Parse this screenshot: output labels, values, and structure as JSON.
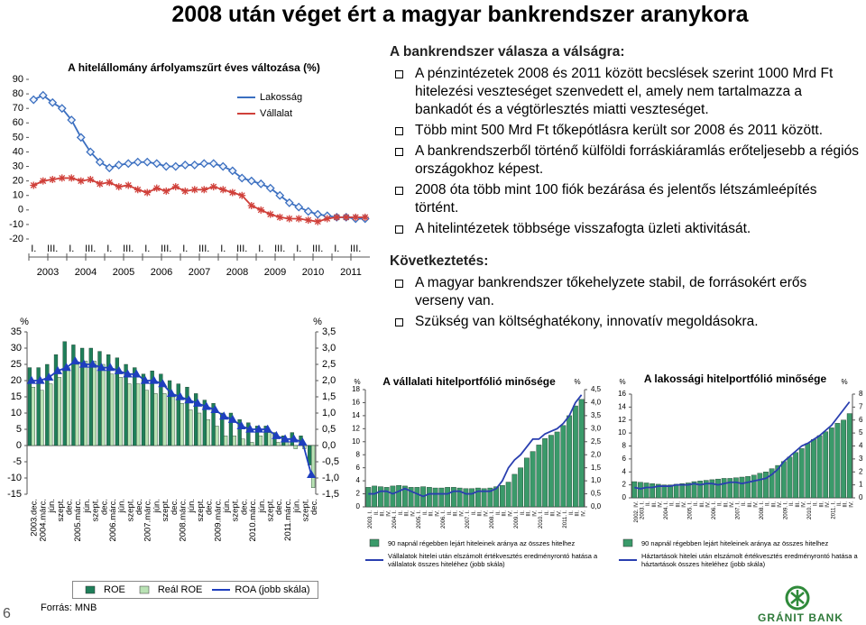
{
  "title": "2008 után véget ért a magyar bankrendszer aranykora",
  "chart_data": [
    {
      "type": "line",
      "title": "A hitelállomány árfolyamszűrt éves változása (%)",
      "categories": [
        "I.",
        null,
        "III.",
        null,
        "I.",
        null,
        "III.",
        null,
        "I.",
        null,
        "III.",
        null,
        "I.",
        null,
        "III.",
        null,
        "I.",
        null,
        "III.",
        null,
        "I.",
        null,
        "III.",
        null,
        "I.",
        null,
        "III.",
        null,
        "I.",
        null,
        "III.",
        null,
        "I.",
        null,
        "III.",
        null
      ],
      "year_labels": [
        "2003",
        "2004",
        "2005",
        "2006",
        "2007",
        "2008",
        "2009",
        "2010",
        "2011"
      ],
      "series": [
        {
          "name": "Lakosság",
          "color": "#3b6fc0",
          "marker": "diamond",
          "values": [
            76,
            79,
            74,
            70,
            62,
            50,
            40,
            33,
            29,
            31,
            32,
            33,
            33,
            32,
            30,
            30,
            31,
            31,
            32,
            32,
            30,
            27,
            22,
            20,
            18,
            15,
            10,
            5,
            2,
            -1,
            -3,
            -4,
            -5,
            -5,
            -6,
            -6
          ]
        },
        {
          "name": "Vállalat",
          "color": "#d0403a",
          "marker": "cross",
          "values": [
            17,
            20,
            21,
            22,
            22,
            20,
            21,
            18,
            19,
            16,
            17,
            14,
            12,
            15,
            13,
            16,
            13,
            14,
            14,
            16,
            14,
            12,
            10,
            3,
            0,
            -3,
            -5,
            -6,
            -6,
            -7,
            -8,
            -6,
            -5,
            -5,
            -5,
            -5
          ]
        }
      ],
      "ylim": [
        -20,
        90
      ],
      "yticks": [
        90,
        80,
        70,
        60,
        50,
        40,
        30,
        20,
        10,
        0,
        -10,
        -20
      ],
      "grid": false
    },
    {
      "type": "bar",
      "categories": [
        "2003.dec.",
        "2004.márc.",
        "jún.",
        "szept.",
        "dec.",
        "2005.márc.",
        "jún.",
        "szept.",
        "dec.",
        "2006.márc.",
        "jún.",
        "szept.",
        "dec.",
        "2007.márc.",
        "jún.",
        "szept.",
        "dec.",
        "2008.márc.",
        "jún.",
        "szept.",
        "dec.",
        "2009.márc.",
        "jún.",
        "szept.",
        "dec.",
        "2010.márc.",
        "jún.",
        "szept.",
        "dec.",
        "2011.márc.",
        "jún.",
        "szept.",
        "dec."
      ],
      "series": [
        {
          "name": "ROE",
          "type": "bar",
          "color": "#1f7f5a",
          "values": [
            24,
            24,
            25,
            28,
            32,
            31,
            30,
            30,
            29,
            28,
            27,
            25,
            24,
            22,
            23,
            22,
            20,
            19,
            18,
            16,
            14,
            13,
            10,
            10,
            8,
            7,
            6,
            6,
            4,
            3,
            4,
            3,
            -6
          ]
        },
        {
          "name": "Reál ROE",
          "type": "bar",
          "color": "#b9e2b4",
          "values": [
            18,
            17,
            19,
            21,
            24,
            25,
            26,
            26,
            25,
            22,
            21,
            19,
            19,
            17,
            16,
            16,
            15,
            13,
            11,
            10,
            8,
            6,
            3,
            3,
            2,
            1,
            3,
            4,
            1,
            1,
            -1,
            -1,
            -13
          ]
        },
        {
          "name": "ROA (jobb skála)",
          "type": "line",
          "axis": "y2",
          "color": "#1f3fbf",
          "marker": "triangle",
          "values": [
            2.0,
            2.0,
            2.1,
            2.3,
            2.4,
            2.6,
            2.5,
            2.5,
            2.4,
            2.4,
            2.3,
            2.2,
            2.2,
            2.0,
            2.0,
            1.9,
            1.6,
            1.5,
            1.4,
            1.3,
            1.2,
            1.1,
            0.9,
            0.8,
            0.6,
            0.5,
            0.5,
            0.5,
            0.3,
            0.2,
            0.2,
            0.1,
            -0.9
          ]
        }
      ],
      "y_label": "%",
      "y2_label": "%",
      "ylim": [
        -15,
        35
      ],
      "yticks": [
        35,
        30,
        25,
        20,
        15,
        10,
        5,
        0,
        -5,
        -10,
        -15
      ],
      "y2lim": [
        -1.5,
        3.5
      ],
      "y2ticks": [
        {
          "value": 3.5,
          "label": "3,5"
        },
        {
          "value": 3,
          "label": "3,0"
        },
        {
          "value": 2.5,
          "label": "2,5"
        },
        {
          "value": 2,
          "label": "2,0"
        },
        {
          "value": 1.5,
          "label": "1,5"
        },
        {
          "value": 1,
          "label": "1,0"
        },
        {
          "value": 0.5,
          "label": "0,5"
        },
        {
          "value": 0,
          "label": "0,0"
        },
        {
          "value": -0.5,
          "label": "-0,5"
        },
        {
          "value": -1,
          "label": "-1,0"
        },
        {
          "value": -1.5,
          "label": "-1,5"
        }
      ],
      "grid": false
    },
    {
      "type": "bar",
      "title": "A vállalati hitelportfólió minősége",
      "categories": [
        "2003. I.",
        "II.",
        "III.",
        "IV.",
        "2004. I.",
        "II.",
        "III.",
        "IV.",
        "2005. I.",
        "II.",
        "III.",
        "IV.",
        "2006. I.",
        "II.",
        "III.",
        "IV.",
        "2007. I.",
        "II.",
        "III.",
        "IV.",
        "2008. I.",
        "II.",
        "III.",
        "IV.",
        "2009. I.",
        "II.",
        "III.",
        "IV.",
        "2010. I.",
        "II.",
        "III.",
        "IV.",
        "2011. I.",
        "II.",
        "III.",
        "IV."
      ],
      "series": [
        {
          "name": "90 napnál régebben lejárt hiteleinek aránya az összes hitelhez",
          "type": "bar",
          "color": "#3a9a6a",
          "values": [
            3.0,
            3.2,
            3.1,
            3.0,
            3.2,
            3.3,
            3.2,
            3.0,
            3.0,
            3.1,
            3.0,
            2.9,
            2.9,
            3.0,
            3.0,
            2.9,
            2.8,
            2.8,
            2.9,
            2.8,
            2.9,
            3.1,
            3.3,
            3.8,
            5.0,
            6.0,
            7.5,
            8.5,
            9.5,
            10.5,
            11.0,
            11.5,
            12.5,
            14.0,
            15.5,
            16.5
          ]
        },
        {
          "name": "Vállalatok hitelei után elszámolt értékvesztés eredményrontó hatása a vállalatok összes hiteléhez (jobb skála)",
          "type": "line",
          "axis": "y2",
          "color": "#2a3fb0",
          "values": [
            0.5,
            0.5,
            0.6,
            0.6,
            0.5,
            0.6,
            0.7,
            0.6,
            0.5,
            0.4,
            0.5,
            0.5,
            0.5,
            0.5,
            0.6,
            0.6,
            0.5,
            0.5,
            0.6,
            0.6,
            0.6,
            0.7,
            1.0,
            1.5,
            1.8,
            2.0,
            2.3,
            2.6,
            2.6,
            2.8,
            2.9,
            3.0,
            3.2,
            3.5,
            4.0,
            4.3
          ]
        }
      ],
      "y_label": "%",
      "y2_label": "%",
      "ylim": [
        0,
        18
      ],
      "yticks": [
        18,
        16,
        14,
        12,
        10,
        8,
        6,
        4,
        2,
        0
      ],
      "y2lim": [
        0,
        4.5
      ],
      "y2ticks": [
        {
          "value": 4.5,
          "label": "4,5"
        },
        {
          "value": 4,
          "label": "4,0"
        },
        {
          "value": 3.5,
          "label": "3,5"
        },
        {
          "value": 3,
          "label": "3,0"
        },
        {
          "value": 2.5,
          "label": "2,5"
        },
        {
          "value": 2,
          "label": "2,0"
        },
        {
          "value": 1.5,
          "label": "1,5"
        },
        {
          "value": 1,
          "label": "1,0"
        },
        {
          "value": 0.5,
          "label": "0,5"
        },
        {
          "value": 0,
          "label": "0,0"
        }
      ],
      "grid": false
    },
    {
      "type": "bar",
      "title": "A lakossági hitelportfólió minősége",
      "categories": [
        "2002. IV.",
        "2003. I.",
        "II.",
        "III.",
        "IV.",
        "2004. I.",
        "II.",
        "III.",
        "IV.",
        "2005. I.",
        "II.",
        "III.",
        "IV.",
        "2006. I.",
        "II.",
        "III.",
        "IV.",
        "2007. I.",
        "II.",
        "III.",
        "IV.",
        "2008. I.",
        "II.",
        "III.",
        "IV.",
        "2009. I.",
        "II.",
        "III.",
        "IV.",
        "2010. I.",
        "II.",
        "III.",
        "IV.",
        "2011. I.",
        "II.",
        "III.",
        "IV."
      ],
      "series": [
        {
          "name": "90 napnál régebben lejárt hiteleinek aránya az összes hitelhez",
          "type": "bar",
          "color": "#3a9a6a",
          "values": [
            2.5,
            2.4,
            2.3,
            2.2,
            2.1,
            2.0,
            2.0,
            2.1,
            2.2,
            2.3,
            2.5,
            2.6,
            2.7,
            2.8,
            2.9,
            3.0,
            3.0,
            3.1,
            3.2,
            3.3,
            3.5,
            3.8,
            4.0,
            4.5,
            5.0,
            5.6,
            6.3,
            7.0,
            7.6,
            8.4,
            9.0,
            9.6,
            10.2,
            10.8,
            11.5,
            12.0,
            13.0
          ]
        },
        {
          "name": "Háztartások hitelei után elszámolt értékvesztés eredményrontó hatása a háztartások összes hiteléhez (jobb skála)",
          "type": "line",
          "axis": "y2",
          "color": "#2a3fb0",
          "values": [
            0.8,
            0.7,
            0.8,
            0.8,
            0.9,
            0.9,
            0.9,
            1.0,
            1.0,
            1.0,
            1.1,
            1.0,
            1.1,
            1.1,
            1.0,
            1.1,
            1.2,
            1.2,
            1.1,
            1.2,
            1.3,
            1.4,
            1.5,
            1.8,
            2.2,
            2.8,
            3.2,
            3.6,
            4.0,
            4.2,
            4.5,
            4.8,
            5.2,
            5.6,
            6.2,
            6.8,
            7.4
          ]
        }
      ],
      "y_label": "%",
      "y2_label": "%",
      "ylim": [
        0,
        16
      ],
      "yticks": [
        16,
        14,
        12,
        10,
        8,
        6,
        4,
        2,
        0
      ],
      "y2lim": [
        0,
        8
      ],
      "y2ticks": [
        8,
        7,
        6,
        5,
        4,
        3,
        2,
        1,
        0
      ],
      "grid": false
    }
  ],
  "response": {
    "heading": "A bankrendszer válasza a válságra:",
    "bullets": [
      "A pénzintézetek 2008 és 2011 között becslések szerint 1000 Mrd Ft hitelezési veszteséget szenvedett el, amely nem tartalmazza a bankadót és a végtörlesztés miatti veszteséget.",
      "Több mint 500 Mrd Ft tőkepótlásra került sor 2008 és 2011 között.",
      "A bankrendszerből történő külföldi forráskiáramlás erőteljesebb a régiós országokhoz képest.",
      "2008 óta több mint 100 fiók bezárása és jelentős létszámleépítés történt.",
      "A hitelintézetek többsége visszafogta üzleti aktivitását."
    ]
  },
  "conclusion": {
    "heading": "Következtetés:",
    "bullets": [
      "A magyar bankrendszer tőkehelyzete stabil, de forrásokért erős verseny van.",
      "Szükség van költséghatékony, innovatív megoldásokra."
    ]
  },
  "footer": {
    "page": "6",
    "source": "Forrás: MNB",
    "logo": "GRÁNIT BANK"
  }
}
